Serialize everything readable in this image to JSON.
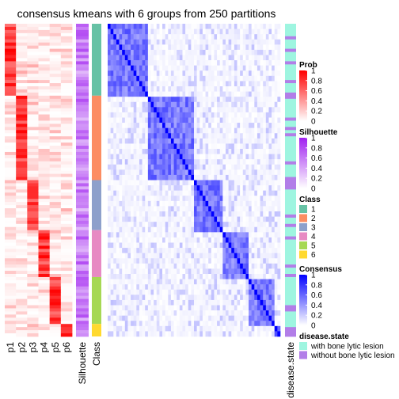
{
  "chart_data": {
    "type": "heatmap",
    "title": "consensus kmeans with 6 groups from 250 partitions",
    "prob_columns": [
      "p1",
      "p2",
      "p3",
      "p4",
      "p5",
      "p6"
    ],
    "silhouette_label": "Silhouette",
    "class_label": "Class",
    "annotation_label": "disease.state",
    "class_block_order": [
      1,
      2,
      3,
      4,
      5,
      6
    ],
    "class_block_fractions": [
      0.2326,
      0.2659,
      0.1595,
      0.1528,
      0.1495,
      0.013
    ],
    "legends": [
      {
        "title": "Prob",
        "kind": "gradient",
        "ticks": [
          "1",
          "0.8",
          "0.6",
          "0.4",
          "0.2",
          "0"
        ],
        "colors": [
          "#ff0000",
          "#ffffff"
        ]
      },
      {
        "title": "Silhouette",
        "kind": "gradient",
        "ticks": [
          "1",
          "0.8",
          "0.6",
          "0.4",
          "0.2",
          "0"
        ],
        "colors": [
          "#a020f0",
          "#ffffff"
        ]
      },
      {
        "title": "Class",
        "kind": "discrete",
        "items": [
          {
            "label": "1",
            "color": "#66c2a5"
          },
          {
            "label": "2",
            "color": "#fc8d62"
          },
          {
            "label": "3",
            "color": "#8da0cb"
          },
          {
            "label": "4",
            "color": "#e78ac3"
          },
          {
            "label": "5",
            "color": "#a6d854"
          },
          {
            "label": "6",
            "color": "#ffd92f"
          }
        ]
      },
      {
        "title": "Consensus",
        "kind": "gradient",
        "ticks": [
          "1",
          "0.8",
          "0.6",
          "0.4",
          "0.2",
          "0"
        ],
        "colors": [
          "#0000ff",
          "#ffffff"
        ]
      },
      {
        "title": "disease.state",
        "kind": "discrete",
        "items": [
          {
            "label": "with bone lytic lesion",
            "color": "#9ef5e0"
          },
          {
            "label": "without bone lytic lesion",
            "color": "#b27ee8"
          }
        ]
      }
    ]
  }
}
